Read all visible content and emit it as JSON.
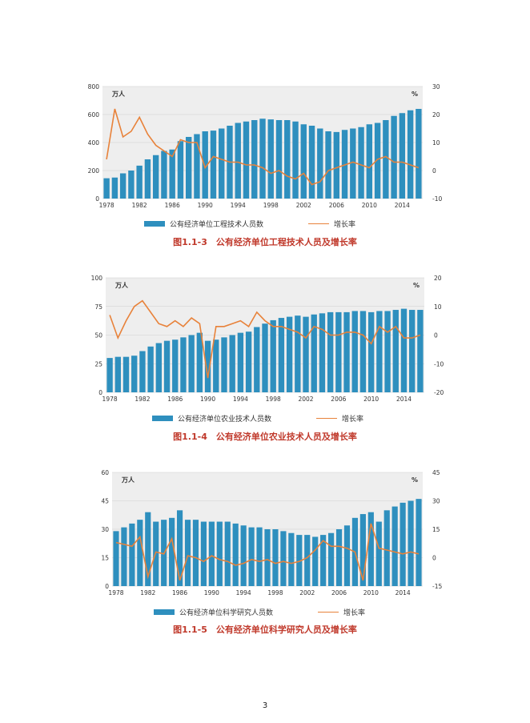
{
  "page_number": "3",
  "colors": {
    "bar": "#2e8fbe",
    "line": "#e8823a",
    "grid": "#cfcfcf",
    "plot_bg": "#eeeeee",
    "caption": "#c0392b"
  },
  "chart_data": [
    {
      "type": "bar+line",
      "title": "图1.1-3　公有经济单位工程技术人员及增长率",
      "left_unit": "万人",
      "right_unit": "%",
      "left_ylim": [
        0,
        800
      ],
      "left_ticks": [
        "0",
        "200",
        "400",
        "600",
        "800"
      ],
      "right_ylim": [
        -10,
        30
      ],
      "right_ticks": [
        "-10",
        "0",
        "10",
        "20",
        "30"
      ],
      "x_ticks": [
        "1978",
        "1982",
        "1986",
        "1990",
        "1994",
        "1998",
        "2002",
        "2006",
        "2010",
        "2014"
      ],
      "years": [
        1978,
        1979,
        1980,
        1981,
        1982,
        1983,
        1984,
        1985,
        1986,
        1987,
        1988,
        1989,
        1990,
        1991,
        1992,
        1993,
        1994,
        1995,
        1996,
        1997,
        1998,
        1999,
        2000,
        2001,
        2002,
        2003,
        2004,
        2005,
        2006,
        2007,
        2008,
        2009,
        2010,
        2011,
        2012,
        2013,
        2014,
        2015,
        2016
      ],
      "series": [
        {
          "name": "公有经济单位工程技术人员数",
          "kind": "bar",
          "axis": "left",
          "values": [
            145,
            150,
            180,
            200,
            235,
            280,
            310,
            340,
            350,
            410,
            440,
            460,
            480,
            485,
            500,
            520,
            540,
            550,
            560,
            570,
            565,
            560,
            560,
            550,
            530,
            520,
            500,
            480,
            475,
            490,
            500,
            510,
            530,
            540,
            560,
            590,
            610,
            630,
            640
          ]
        },
        {
          "name": "增长率",
          "kind": "line",
          "axis": "right",
          "values": [
            4,
            22,
            12,
            14,
            19,
            13,
            9,
            7,
            5,
            11,
            10,
            10,
            1,
            5,
            4,
            3,
            3,
            2,
            2,
            1,
            -1,
            0,
            -2,
            -3,
            -1,
            -5,
            -4,
            0,
            1,
            2,
            3,
            2,
            1,
            4,
            5,
            3,
            3,
            2,
            1
          ]
        }
      ],
      "legend": [
        "公有经济单位工程技术人员数",
        "增长率"
      ]
    },
    {
      "type": "bar+line",
      "title": "图1.1-4　公有经济单位农业技术人员及增长率",
      "left_unit": "万人",
      "right_unit": "%",
      "left_ylim": [
        0,
        100
      ],
      "left_ticks": [
        "0",
        "25",
        "50",
        "75",
        "100"
      ],
      "right_ylim": [
        -20,
        20
      ],
      "right_ticks": [
        "-20",
        "-10",
        "0",
        "10",
        "20"
      ],
      "x_ticks": [
        "1978",
        "1982",
        "1986",
        "1990",
        "1994",
        "1998",
        "2002",
        "2006",
        "2010",
        "2014"
      ],
      "years": [
        1978,
        1979,
        1980,
        1981,
        1982,
        1983,
        1984,
        1985,
        1986,
        1987,
        1988,
        1989,
        1990,
        1991,
        1992,
        1993,
        1994,
        1995,
        1996,
        1997,
        1998,
        1999,
        2000,
        2001,
        2002,
        2003,
        2004,
        2005,
        2006,
        2007,
        2008,
        2009,
        2010,
        2011,
        2012,
        2013,
        2014,
        2015,
        2016
      ],
      "series": [
        {
          "name": "公有经济单位农业技术人员数",
          "kind": "bar",
          "axis": "left",
          "values": [
            30,
            31,
            31,
            32,
            36,
            40,
            43,
            45,
            46,
            48,
            50,
            52,
            45,
            46,
            48,
            50,
            52,
            53,
            57,
            60,
            63,
            65,
            66,
            67,
            66,
            68,
            69,
            70,
            70,
            70,
            71,
            71,
            70,
            71,
            71,
            72,
            73,
            72,
            72
          ]
        },
        {
          "name": "增长率",
          "kind": "line",
          "axis": "right",
          "values": [
            7,
            -1,
            5,
            10,
            12,
            8,
            4,
            3,
            5,
            3,
            6,
            4,
            -15,
            3,
            3,
            4,
            5,
            3,
            8,
            5,
            3,
            3,
            2,
            1,
            -1,
            3,
            2,
            0,
            0,
            1,
            1,
            0,
            -3,
            3,
            1,
            3,
            -1,
            -1,
            0
          ]
        }
      ],
      "legend": [
        "公有经济单位农业技术人员数",
        "增长率"
      ]
    },
    {
      "type": "bar+line",
      "title": "图1.1-5　公有经济单位科学研究人员及增长率",
      "left_unit": "万人",
      "right_unit": "%",
      "left_ylim": [
        0,
        60
      ],
      "left_ticks": [
        "0",
        "15",
        "30",
        "45",
        "60"
      ],
      "right_ylim": [
        -15,
        45
      ],
      "right_ticks": [
        "-15",
        "0",
        "15",
        "30",
        "45"
      ],
      "x_ticks": [
        "1978",
        "1982",
        "1986",
        "1990",
        "1994",
        "1998",
        "2002",
        "2006",
        "2010",
        "2014"
      ],
      "years": [
        1978,
        1979,
        1980,
        1981,
        1982,
        1983,
        1984,
        1985,
        1986,
        1987,
        1988,
        1989,
        1990,
        1991,
        1992,
        1993,
        1994,
        1995,
        1996,
        1997,
        1998,
        1999,
        2000,
        2001,
        2002,
        2003,
        2004,
        2005,
        2006,
        2007,
        2008,
        2009,
        2010,
        2011,
        2012,
        2013,
        2014,
        2015,
        2016
      ],
      "series": [
        {
          "name": "公有经济单位科学研究人员数",
          "kind": "bar",
          "axis": "left",
          "values": [
            29,
            31,
            33,
            35,
            39,
            34,
            35,
            36,
            40,
            35,
            35,
            34,
            34,
            34,
            34,
            33,
            32,
            31,
            31,
            30,
            30,
            29,
            28,
            27,
            27,
            26,
            27,
            28,
            30,
            32,
            36,
            38,
            39,
            34,
            40,
            42,
            44,
            45,
            46
          ]
        },
        {
          "name": "增长率",
          "kind": "line",
          "axis": "right",
          "values": [
            8,
            7,
            6,
            11,
            -10,
            3,
            2,
            10,
            -12,
            1,
            0,
            -2,
            1,
            -1,
            -2,
            -4,
            -3,
            -1,
            -2,
            -1,
            -3,
            -2,
            -3,
            -2,
            0,
            4,
            9,
            6,
            6,
            5,
            3,
            -12,
            18,
            5,
            4,
            3,
            2,
            3,
            2
          ]
        }
      ],
      "legend": [
        "公有经济单位科学研究人员数",
        "增长率"
      ]
    }
  ]
}
